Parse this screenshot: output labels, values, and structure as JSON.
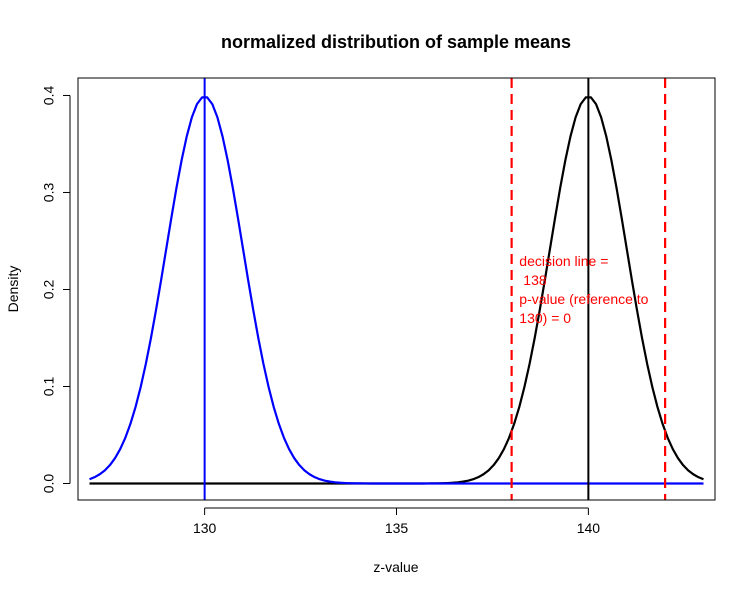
{
  "chart_data": {
    "type": "line",
    "title": "normalized distribution of sample means",
    "xlabel": "z-value",
    "ylabel": "Density",
    "xlim": [
      126.7,
      143.3
    ],
    "ylim": [
      -0.017,
      0.418
    ],
    "x_ticks": [
      130,
      135,
      140
    ],
    "y_ticks": [
      0.0,
      0.1,
      0.2,
      0.3,
      0.4
    ],
    "y_tick_labels": [
      "0.0",
      "0.1",
      "0.2",
      "0.3",
      "0.4"
    ],
    "grid": false,
    "series": [
      {
        "color": "#0000ff",
        "distribution": "normal",
        "mean": 130,
        "sd": 1,
        "x_range": [
          127,
          143
        ],
        "vertical_line_at": 130
      },
      {
        "color": "#000000",
        "distribution": "normal",
        "mean": 140,
        "sd": 1,
        "x_range": [
          127,
          143
        ],
        "vertical_line_at": 140
      }
    ],
    "decision_lines": {
      "color": "#ff0000",
      "style": "dashed",
      "x": [
        138,
        142
      ]
    },
    "annotation": {
      "color": "#ff0000",
      "x": 138.2,
      "y": 0.2,
      "lines": [
        "decision line =",
        "138",
        "p-value (reference to",
        "130) = 0"
      ]
    }
  }
}
